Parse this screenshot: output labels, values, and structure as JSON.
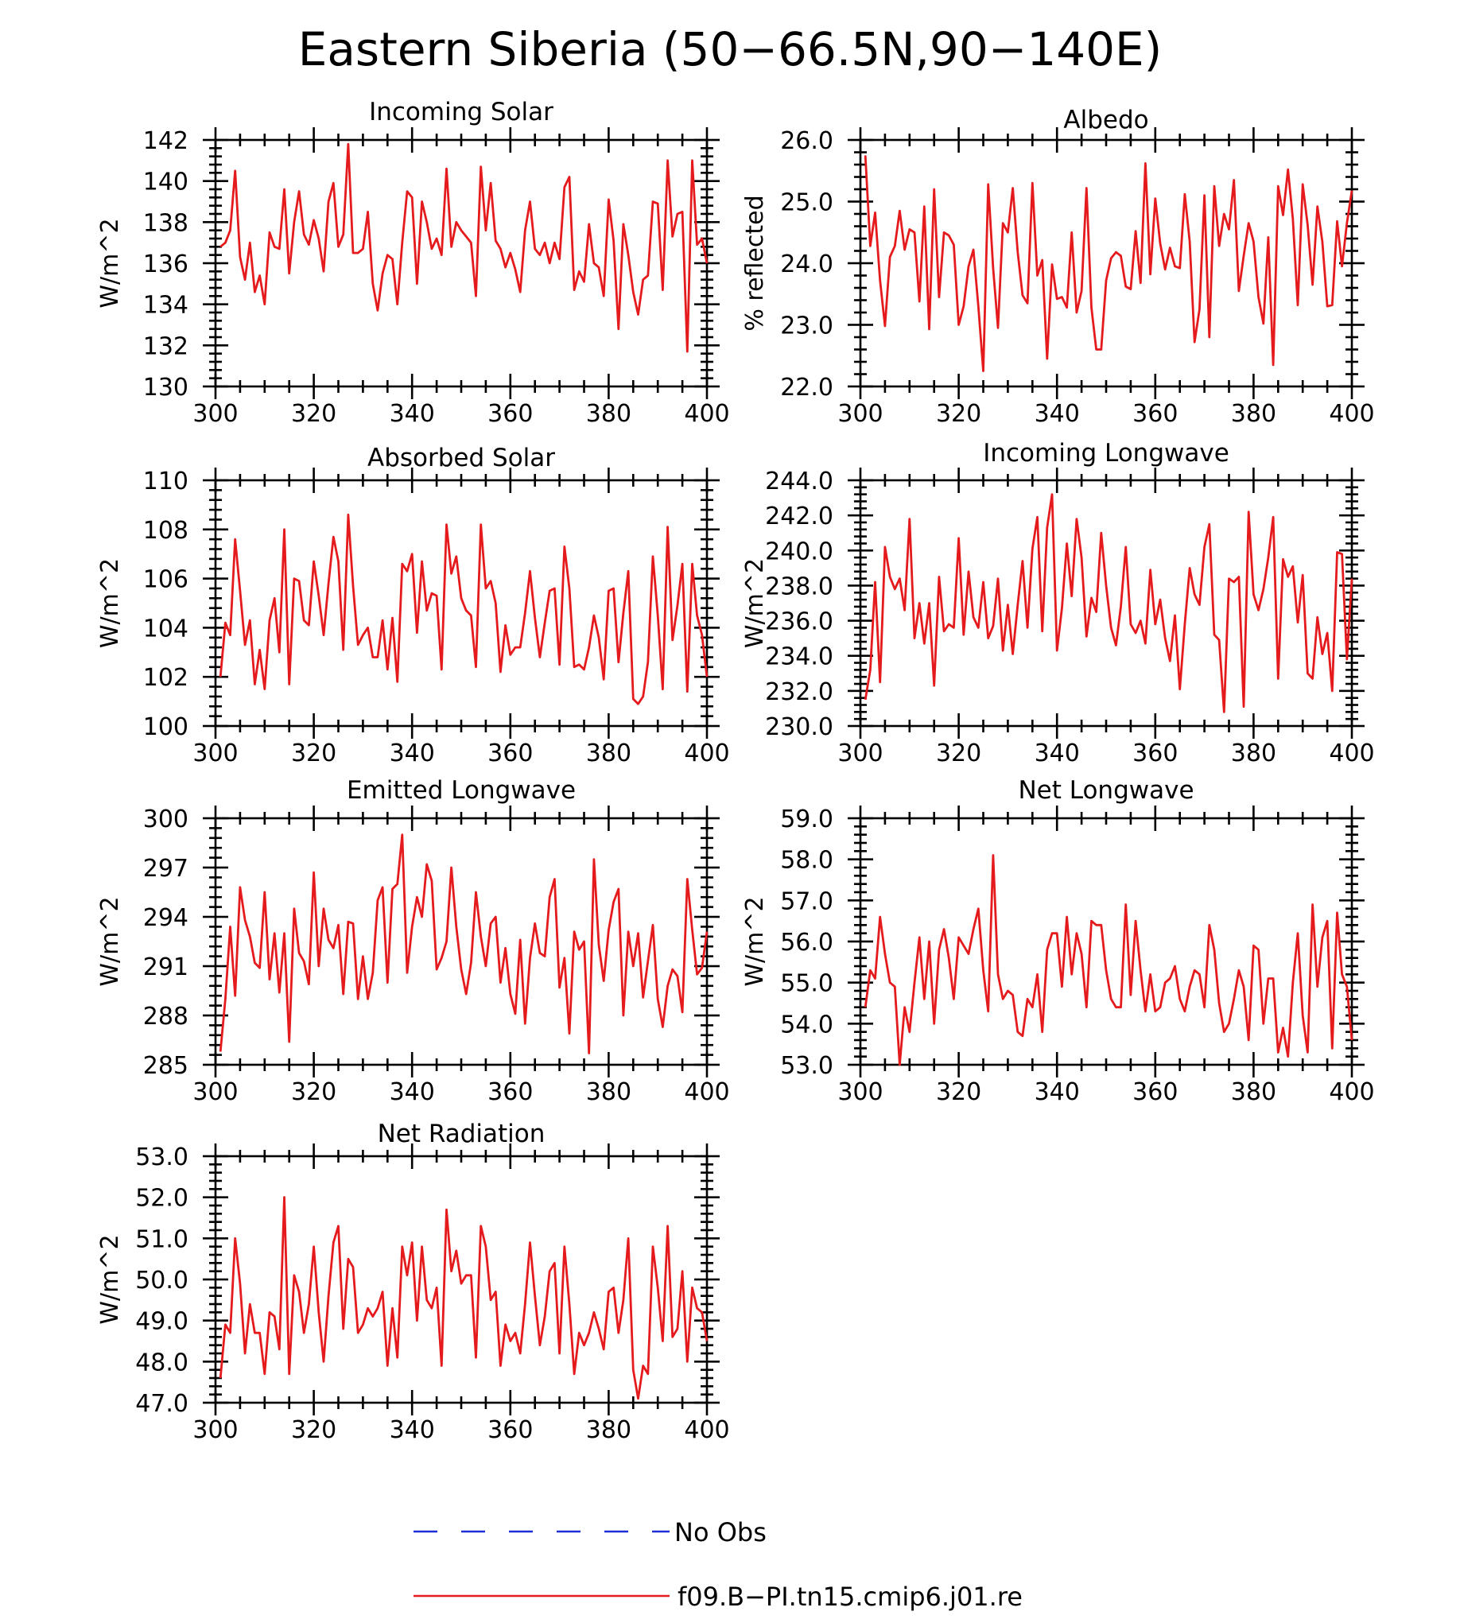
{
  "figure": {
    "title": "Eastern Siberia (50−66.5N,90−140E)"
  },
  "legend": [
    {
      "label": "No Obs",
      "color": "#1f2fd6",
      "dash": true
    },
    {
      "label": "f09.B−PI.tn15.cmip6.j01.re",
      "color": "#e41a1c",
      "dash": false
    }
  ],
  "chart_data": [
    {
      "type": "line",
      "title": "Incoming Solar",
      "ylabel": "W/m^2",
      "xlim": [
        300,
        400
      ],
      "ylim": [
        130,
        142
      ],
      "xticks": [
        "300",
        "320",
        "340",
        "360",
        "380",
        "400"
      ],
      "yticks": [
        "130",
        "132",
        "134",
        "136",
        "138",
        "140",
        "142"
      ],
      "series": [
        {
          "color": "#e41a1c",
          "x0": 301,
          "dx": 1,
          "values": [
            136.8,
            137.0,
            137.6,
            140.5,
            136.3,
            135.2,
            137.0,
            134.6,
            135.4,
            134.0,
            137.5,
            136.8,
            136.7,
            139.6,
            135.5,
            138.0,
            139.5,
            137.4,
            136.9,
            138.1,
            137.2,
            135.6,
            139.0,
            139.9,
            136.8,
            137.4,
            141.8,
            136.5,
            136.5,
            136.7,
            138.5,
            135.0,
            133.7,
            135.5,
            136.4,
            136.2,
            134.0,
            137.0,
            139.5,
            139.2,
            135.0,
            139.0,
            138.0,
            136.7,
            137.2,
            136.4,
            140.6,
            136.8,
            138.0,
            137.6,
            137.3,
            137.0,
            134.4,
            140.7,
            137.6,
            139.9,
            137.1,
            136.7,
            135.8,
            136.5,
            135.7,
            134.6,
            137.6,
            139.0,
            136.7,
            136.4,
            137.0,
            136.0,
            137.0,
            136.2,
            139.7,
            140.2,
            134.7,
            135.6,
            135.1,
            137.9,
            136.0,
            135.8,
            134.4,
            139.1,
            137.1,
            132.8,
            137.9,
            136.4,
            134.6,
            133.5,
            135.2,
            135.4,
            139.0,
            138.9,
            134.7,
            141.0,
            137.3,
            138.4,
            138.5,
            131.7,
            141.0,
            136.9,
            137.2,
            136.0
          ]
        }
      ]
    },
    {
      "type": "line",
      "title": "Albedo",
      "ylabel": "% reflected",
      "xlim": [
        300,
        400
      ],
      "ylim": [
        22.0,
        26.0
      ],
      "xticks": [
        "300",
        "320",
        "340",
        "360",
        "380",
        "400"
      ],
      "yticks": [
        "22.0",
        "23.0",
        "24.0",
        "25.0",
        "26.0"
      ],
      "series": [
        {
          "color": "#e41a1c",
          "x0": 301,
          "dx": 1,
          "values": [
            25.75,
            24.28,
            24.82,
            23.72,
            22.98,
            24.1,
            24.28,
            24.85,
            24.22,
            24.55,
            24.5,
            23.38,
            24.92,
            22.93,
            25.2,
            23.45,
            24.5,
            24.45,
            24.3,
            23.0,
            23.3,
            23.95,
            24.22,
            23.3,
            22.25,
            25.28,
            23.92,
            22.95,
            24.65,
            24.5,
            25.22,
            24.18,
            23.48,
            23.35,
            25.3,
            23.8,
            24.05,
            22.45,
            23.98,
            23.42,
            23.45,
            23.28,
            24.5,
            23.2,
            23.55,
            25.22,
            23.28,
            22.6,
            22.6,
            23.72,
            24.08,
            24.18,
            24.12,
            23.62,
            23.58,
            24.52,
            23.68,
            25.62,
            23.82,
            25.05,
            24.32,
            23.9,
            24.25,
            23.95,
            23.92,
            25.12,
            24.35,
            22.72,
            23.25,
            25.1,
            22.8,
            25.25,
            24.28,
            24.8,
            24.55,
            25.35,
            23.55,
            24.12,
            24.65,
            24.35,
            23.45,
            23.02,
            24.42,
            22.35,
            25.25,
            24.78,
            25.52,
            24.72,
            23.32,
            25.28,
            24.62,
            23.65,
            24.92,
            24.35,
            23.3,
            23.32,
            24.68,
            23.95,
            24.65,
            25.18
          ]
        }
      ]
    },
    {
      "type": "line",
      "title": "Absorbed Solar",
      "ylabel": "W/m^2",
      "xlim": [
        300,
        400
      ],
      "ylim": [
        100,
        110
      ],
      "xticks": [
        "300",
        "320",
        "340",
        "360",
        "380",
        "400"
      ],
      "yticks": [
        "100",
        "102",
        "104",
        "106",
        "108",
        "110"
      ],
      "series": [
        {
          "color": "#e41a1c",
          "x0": 301,
          "dx": 1,
          "values": [
            102.0,
            104.2,
            103.7,
            107.6,
            105.5,
            103.3,
            104.3,
            101.7,
            103.1,
            101.5,
            104.3,
            105.2,
            103.0,
            108.0,
            101.7,
            106.0,
            105.9,
            104.3,
            104.1,
            106.7,
            105.3,
            103.7,
            105.8,
            107.7,
            106.7,
            103.1,
            108.6,
            105.7,
            103.3,
            103.7,
            104.0,
            102.8,
            102.8,
            104.3,
            102.3,
            104.4,
            101.8,
            106.6,
            106.3,
            107.0,
            103.8,
            106.7,
            104.7,
            105.4,
            105.3,
            102.3,
            108.2,
            106.2,
            106.9,
            105.2,
            104.7,
            104.5,
            102.4,
            108.2,
            105.6,
            105.9,
            105.0,
            102.2,
            104.1,
            102.9,
            103.2,
            103.2,
            104.6,
            106.3,
            104.4,
            102.8,
            104.2,
            105.5,
            105.6,
            102.5,
            107.3,
            105.6,
            102.4,
            102.5,
            102.3,
            103.2,
            104.5,
            103.6,
            101.9,
            105.5,
            105.6,
            102.6,
            104.6,
            106.3,
            101.1,
            100.9,
            101.2,
            102.6,
            106.9,
            104.5,
            101.5,
            108.1,
            103.5,
            104.9,
            106.6,
            101.4,
            106.6,
            104.5,
            103.7,
            102.0
          ]
        }
      ]
    },
    {
      "type": "line",
      "title": "Incoming Longwave",
      "ylabel": "W/m^2",
      "xlim": [
        300,
        400
      ],
      "ylim": [
        230.0,
        244.0
      ],
      "xticks": [
        "300",
        "320",
        "340",
        "360",
        "380",
        "400"
      ],
      "yticks": [
        "230.0",
        "232.0",
        "234.0",
        "236.0",
        "238.0",
        "240.0",
        "242.0",
        "244.0"
      ],
      "series": [
        {
          "color": "#e41a1c",
          "x0": 301,
          "dx": 1,
          "values": [
            231.5,
            233.2,
            238.2,
            232.5,
            240.2,
            238.5,
            237.8,
            238.4,
            236.6,
            241.8,
            235.0,
            237.0,
            234.7,
            237.0,
            232.3,
            238.5,
            235.4,
            235.8,
            235.6,
            240.7,
            235.2,
            238.8,
            236.2,
            235.6,
            238.2,
            235.0,
            235.7,
            238.4,
            234.3,
            236.9,
            234.1,
            236.9,
            239.4,
            235.6,
            240.1,
            241.9,
            235.4,
            241.3,
            243.2,
            234.3,
            236.7,
            240.4,
            237.4,
            241.8,
            239.6,
            235.1,
            237.3,
            236.5,
            241.0,
            238.0,
            235.6,
            234.6,
            236.8,
            240.2,
            235.8,
            235.3,
            236.0,
            234.7,
            238.9,
            235.8,
            237.2,
            235.0,
            233.7,
            236.3,
            232.1,
            235.8,
            239.0,
            237.5,
            236.9,
            240.2,
            241.5,
            235.2,
            234.9,
            230.8,
            238.4,
            238.2,
            238.5,
            231.1,
            242.2,
            237.5,
            236.6,
            237.8,
            239.6,
            241.9,
            232.7,
            239.5,
            238.5,
            239.1,
            235.9,
            238.6,
            233.0,
            232.7,
            236.2,
            234.1,
            235.3,
            232.0,
            239.9,
            239.8,
            233.8,
            238.4
          ]
        }
      ]
    },
    {
      "type": "line",
      "title": "Emitted Longwave",
      "ylabel": "W/m^2",
      "xlim": [
        300,
        400
      ],
      "ylim": [
        285,
        300
      ],
      "xticks": [
        "300",
        "320",
        "340",
        "360",
        "380",
        "400"
      ],
      "yticks": [
        "285",
        "288",
        "291",
        "294",
        "297",
        "300"
      ],
      "series": [
        {
          "color": "#e41a1c",
          "x0": 301,
          "dx": 1,
          "values": [
            285.8,
            289.0,
            293.4,
            289.2,
            295.8,
            293.8,
            292.8,
            291.2,
            290.9,
            295.5,
            290.2,
            293.0,
            289.4,
            293.0,
            286.4,
            294.5,
            291.8,
            291.3,
            289.9,
            296.7,
            291.0,
            294.5,
            292.6,
            292.1,
            293.5,
            289.3,
            293.7,
            293.6,
            289.0,
            291.6,
            289.0,
            290.6,
            295.0,
            295.8,
            290.0,
            295.7,
            296.0,
            299.0,
            290.6,
            293.4,
            295.2,
            294.0,
            297.2,
            296.2,
            290.8,
            291.5,
            292.5,
            297.0,
            293.4,
            290.8,
            289.3,
            291.2,
            295.5,
            292.8,
            291.0,
            293.6,
            294.0,
            290.0,
            292.1,
            289.3,
            288.1,
            292.6,
            287.5,
            291.5,
            293.6,
            291.8,
            291.6,
            295.2,
            296.3,
            289.7,
            291.5,
            286.9,
            293.1,
            292.0,
            292.5,
            285.7,
            297.5,
            292.3,
            290.1,
            293.2,
            294.9,
            295.7,
            288.0,
            293.1,
            291.0,
            293.0,
            289.1,
            291.3,
            293.5,
            289.0,
            287.3,
            289.8,
            290.8,
            290.4,
            288.2,
            296.3,
            293.2,
            290.5,
            290.9,
            293.1
          ]
        }
      ]
    },
    {
      "type": "line",
      "title": "Net Longwave",
      "ylabel": "W/m^2",
      "xlim": [
        300,
        400
      ],
      "ylim": [
        53.0,
        59.0
      ],
      "xticks": [
        "300",
        "320",
        "340",
        "360",
        "380",
        "400"
      ],
      "yticks": [
        "53.0",
        "54.0",
        "55.0",
        "56.0",
        "57.0",
        "58.0",
        "59.0"
      ],
      "series": [
        {
          "color": "#e41a1c",
          "x0": 301,
          "dx": 1,
          "values": [
            54.4,
            55.3,
            55.1,
            56.6,
            55.7,
            55.0,
            54.9,
            53.0,
            54.4,
            53.8,
            55.0,
            56.1,
            54.6,
            56.0,
            54.0,
            55.8,
            56.3,
            55.6,
            54.6,
            56.1,
            55.9,
            55.7,
            56.3,
            56.8,
            55.3,
            54.3,
            58.1,
            55.2,
            54.6,
            54.8,
            54.7,
            53.8,
            53.7,
            54.6,
            54.4,
            55.2,
            53.8,
            55.8,
            56.2,
            56.2,
            54.9,
            56.6,
            55.2,
            56.2,
            55.7,
            54.4,
            56.5,
            56.4,
            56.4,
            55.3,
            54.6,
            54.4,
            54.4,
            56.9,
            54.7,
            56.5,
            55.3,
            54.3,
            55.2,
            54.3,
            54.4,
            55.0,
            55.1,
            55.4,
            54.6,
            54.3,
            54.9,
            55.3,
            55.2,
            54.4,
            56.4,
            55.8,
            54.5,
            53.8,
            54.0,
            54.6,
            55.3,
            54.9,
            53.6,
            55.9,
            55.8,
            54.0,
            55.1,
            55.1,
            53.3,
            53.9,
            53.2,
            55.0,
            56.2,
            54.2,
            53.3,
            56.9,
            54.9,
            56.1,
            56.5,
            53.4,
            56.7,
            55.2,
            54.9,
            53.6
          ]
        }
      ]
    },
    {
      "type": "line",
      "title": "Net Radiation",
      "ylabel": "W/m^2",
      "xlim": [
        300,
        400
      ],
      "ylim": [
        47.0,
        53.0
      ],
      "xticks": [
        "300",
        "320",
        "340",
        "360",
        "380",
        "400"
      ],
      "yticks": [
        "47.0",
        "48.0",
        "49.0",
        "50.0",
        "51.0",
        "52.0",
        "53.0"
      ],
      "series": [
        {
          "color": "#e41a1c",
          "x0": 301,
          "dx": 1,
          "values": [
            47.6,
            48.9,
            48.7,
            51.0,
            49.9,
            48.2,
            49.4,
            48.7,
            48.7,
            47.7,
            49.2,
            49.1,
            48.3,
            52.0,
            47.7,
            50.1,
            49.7,
            48.7,
            49.4,
            50.8,
            49.2,
            48.0,
            49.6,
            50.9,
            51.3,
            48.8,
            50.5,
            50.3,
            48.7,
            48.9,
            49.3,
            49.1,
            49.3,
            49.7,
            47.9,
            49.3,
            48.1,
            50.8,
            50.1,
            50.9,
            49.0,
            50.8,
            49.5,
            49.3,
            49.8,
            47.9,
            51.7,
            50.2,
            50.7,
            49.9,
            50.1,
            50.1,
            48.1,
            51.3,
            50.8,
            49.5,
            49.7,
            47.9,
            48.9,
            48.5,
            48.7,
            48.2,
            49.4,
            50.9,
            49.6,
            48.4,
            49.1,
            50.2,
            50.4,
            48.2,
            50.8,
            49.4,
            47.7,
            48.7,
            48.4,
            48.7,
            49.2,
            48.8,
            48.3,
            49.7,
            49.8,
            48.7,
            49.5,
            51.0,
            47.8,
            47.1,
            47.9,
            47.7,
            50.8,
            49.8,
            48.5,
            51.3,
            48.6,
            48.8,
            50.2,
            48.0,
            49.8,
            49.3,
            49.2,
            48.5
          ]
        }
      ]
    }
  ]
}
